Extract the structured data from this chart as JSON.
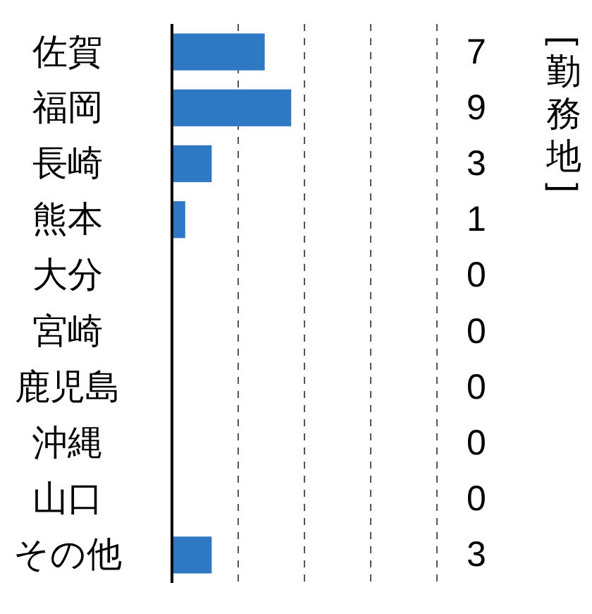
{
  "chart_data": {
    "type": "bar",
    "orientation": "horizontal",
    "categories": [
      "佐賀",
      "福岡",
      "長崎",
      "熊本",
      "大分",
      "宮崎",
      "鹿児島",
      "沖縄",
      "山口",
      "その他"
    ],
    "values": [
      7,
      9,
      3,
      1,
      0,
      0,
      0,
      0,
      0,
      3
    ],
    "color": "#2f78c4",
    "xlim": [
      0,
      20
    ],
    "xticks": [
      {
        "value": 5,
        "label": null
      },
      {
        "value": 10,
        "label": null
      },
      {
        "value": 15,
        "label": null
      },
      {
        "value": 20,
        "label": null
      }
    ],
    "grid": "x",
    "data_labels": true,
    "y2label": "[勤務地]"
  }
}
